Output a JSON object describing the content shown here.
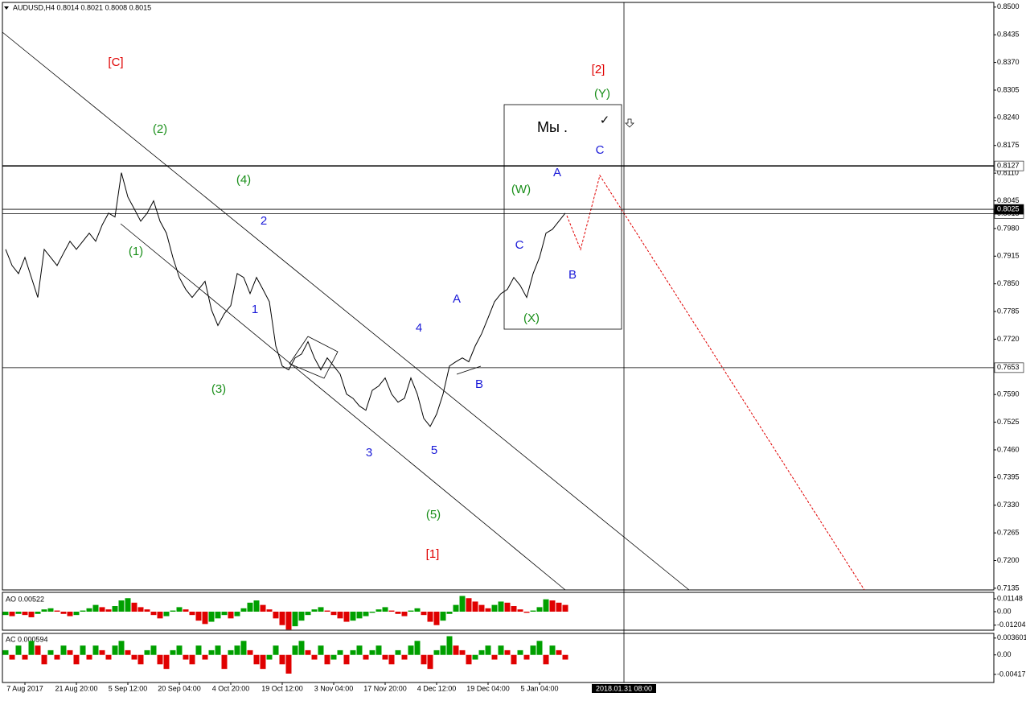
{
  "chart_data": [
    {
      "type": "line",
      "title": "AUDUSD,H4  0.8014 0.8021 0.8008 0.8015",
      "color": "#000000",
      "categories": [
        null,
        null,
        null,
        "7 Aug 2017",
        null,
        null,
        null,
        null,
        null,
        null,
        null,
        "21 Aug 20:00",
        null,
        null,
        null,
        null,
        null,
        null,
        null,
        "5 Sep 12:00",
        null,
        null,
        null,
        null,
        null,
        null,
        null,
        "20 Sep 04:00",
        null,
        null,
        null,
        null,
        null,
        null,
        null,
        "4 Oct 20:00",
        null,
        null,
        null,
        null,
        null,
        null,
        null,
        "19 Oct 12:00",
        null,
        null,
        null,
        null,
        null,
        null,
        null,
        "3 Nov 04:00",
        null,
        null,
        null,
        null,
        null,
        null,
        null,
        "17 Nov 20:00",
        null,
        null,
        null,
        null,
        null,
        null,
        null,
        "4 Dec 12:00",
        null,
        null,
        null,
        null,
        null,
        null,
        null,
        "19 Dec 04:00",
        null,
        null,
        null,
        null,
        null,
        null,
        null,
        "5 Jan 04:00",
        null,
        null,
        null,
        null
      ],
      "values": [
        0.7931,
        0.7893,
        0.7874,
        0.7912,
        0.7865,
        0.7818,
        0.7931,
        0.7912,
        0.7893,
        0.7922,
        0.795,
        0.7931,
        0.795,
        0.7969,
        0.795,
        0.7988,
        0.8016,
        0.8007,
        0.8111,
        0.8054,
        0.8026,
        0.7997,
        0.8016,
        0.8045,
        0.7997,
        0.7969,
        0.7912,
        0.7865,
        0.7837,
        0.7818,
        0.7837,
        0.7856,
        0.7789,
        0.7752,
        0.778,
        0.7799,
        0.7874,
        0.7865,
        0.7827,
        0.7865,
        0.7837,
        0.7808,
        0.7704,
        0.7657,
        0.7648,
        0.7676,
        0.7685,
        0.7714,
        0.7676,
        0.7648,
        0.7676,
        0.7657,
        0.7638,
        0.7591,
        0.7581,
        0.7563,
        0.7553,
        0.76,
        0.761,
        0.7629,
        0.7591,
        0.7572,
        0.7581,
        0.7629,
        0.7591,
        0.7534,
        0.7515,
        0.7544,
        0.7591,
        0.7657,
        0.7667,
        0.7676,
        0.7667,
        0.7704,
        0.7733,
        0.777,
        0.7808,
        0.7827,
        0.7837,
        0.7865,
        0.7846,
        0.7818,
        0.7874,
        0.7912,
        0.7969,
        0.7978,
        0.7997,
        0.8016
      ],
      "ylim": [
        0.7131,
        0.8511
      ],
      "yticks": [
        {
          "value": 0.85,
          "label": "0.8500"
        },
        {
          "value": 0.8435,
          "label": "0.8435"
        },
        {
          "value": 0.837,
          "label": "0.8370"
        },
        {
          "value": 0.8305,
          "label": "0.8305"
        },
        {
          "value": 0.824,
          "label": "0.8240"
        },
        {
          "value": 0.8175,
          "label": "0.8175"
        },
        {
          "value": 0.811,
          "label": "0.8110"
        },
        {
          "value": 0.8045,
          "label": "0.8045"
        },
        {
          "value": 0.798,
          "label": "0.7980"
        },
        {
          "value": 0.7915,
          "label": "0.7915"
        },
        {
          "value": 0.785,
          "label": "0.7850"
        },
        {
          "value": 0.7785,
          "label": "0.7785"
        },
        {
          "value": 0.772,
          "label": "0.7720"
        },
        {
          "value": 0.759,
          "label": "0.7590"
        },
        {
          "value": 0.7525,
          "label": "0.7525"
        },
        {
          "value": 0.746,
          "label": "0.7460"
        },
        {
          "value": 0.7395,
          "label": "0.7395"
        },
        {
          "value": 0.733,
          "label": "0.7330"
        },
        {
          "value": 0.7265,
          "label": "0.7265"
        },
        {
          "value": 0.72,
          "label": "0.7200"
        },
        {
          "value": 0.7135,
          "label": "0.7135"
        }
      ],
      "hlines": [
        {
          "value": 0.8127,
          "label": "0.8127"
        },
        {
          "value": 0.8015,
          "label": "0.8015"
        },
        {
          "value": 0.8025,
          "label": "0.8025"
        },
        {
          "value": 0.7653,
          "label": "0.7653"
        }
      ],
      "cursor_time": "2018.01.31 08:00",
      "annotations": [
        {
          "text": "[C]",
          "color": "#e00000"
        },
        {
          "text": "(2)",
          "color": "#1a8f1a"
        },
        {
          "text": "(4)",
          "color": "#1a8f1a"
        },
        {
          "text": "2",
          "color": "#1a1ad8"
        },
        {
          "text": "(1)",
          "color": "#1a8f1a"
        },
        {
          "text": "1",
          "color": "#1a1ad8"
        },
        {
          "text": "(3)",
          "color": "#1a8f1a"
        },
        {
          "text": "3",
          "color": "#1a1ad8"
        },
        {
          "text": "4",
          "color": "#1a1ad8"
        },
        {
          "text": "A",
          "color": "#1a1ad8"
        },
        {
          "text": "5",
          "color": "#1a1ad8"
        },
        {
          "text": "(5)",
          "color": "#1a8f1a"
        },
        {
          "text": "[1]",
          "color": "#e00000"
        },
        {
          "text": "B",
          "color": "#1a1ad8"
        },
        {
          "text": "C",
          "color": "#1a1ad8"
        },
        {
          "text": "(W)",
          "color": "#1a8f1a"
        },
        {
          "text": "A",
          "color": "#1a1ad8"
        },
        {
          "text": "(X)",
          "color": "#1a8f1a"
        },
        {
          "text": "B",
          "color": "#1a1ad8"
        },
        {
          "text": "C",
          "color": "#1a1ad8"
        },
        {
          "text": "(Y)",
          "color": "#1a8f1a"
        },
        {
          "text": "[2]",
          "color": "#e00000"
        },
        {
          "text": "Мы .",
          "color": "#000000"
        },
        {
          "text": "✓",
          "color": "#000000"
        }
      ]
    },
    {
      "type": "histogram-osc",
      "title": "AO 0.00522",
      "up_color": "#00a000",
      "down_color": "#e00000",
      "values": [
        -0.003,
        -0.004,
        -0.002,
        -0.003,
        -0.005,
        -0.002,
        0.002,
        0.003,
        0.001,
        -0.002,
        -0.004,
        -0.003,
        0.001,
        0.003,
        0.006,
        0.004,
        0.002,
        0.005,
        0.01,
        0.012,
        0.008,
        0.004,
        0.002,
        -0.003,
        -0.006,
        -0.004,
        0.001,
        0.004,
        0.002,
        -0.003,
        -0.008,
        -0.011,
        -0.009,
        -0.006,
        -0.003,
        -0.006,
        -0.004,
        0.003,
        0.008,
        0.01,
        0.006,
        0.002,
        -0.006,
        -0.012,
        -0.016,
        -0.013,
        -0.008,
        -0.003,
        0.002,
        0.004,
        0.001,
        -0.003,
        -0.006,
        -0.009,
        -0.008,
        -0.006,
        -0.004,
        -0.001,
        0.002,
        0.004,
        0.001,
        -0.002,
        -0.004,
        0.001,
        0.003,
        -0.003,
        -0.009,
        -0.012,
        -0.008,
        -0.002,
        0.006,
        0.014,
        0.012,
        0.009,
        0.006,
        0.003,
        0.006,
        0.009,
        0.008,
        0.005,
        0.002,
        -0.001,
        0.001,
        0.004,
        0.011,
        0.01,
        0.008,
        0.006
      ],
      "ylim": [
        -0.0165,
        0.0172
      ],
      "yticks": [
        0.01148,
        {
          "value": 0,
          "label": "0.00"
        },
        -0.01204
      ]
    },
    {
      "type": "histogram-osc",
      "title": "AC 0.000594",
      "up_color": "#00a000",
      "down_color": "#e00000",
      "values": [
        0.001,
        -0.001,
        0.002,
        -0.001,
        0.003,
        0.002,
        -0.002,
        0.001,
        -0.001,
        0.002,
        0.001,
        -0.002,
        0.002,
        -0.001,
        0.002,
        0.001,
        -0.001,
        0.002,
        0.003,
        0.001,
        -0.001,
        -0.002,
        0.001,
        0.002,
        -0.002,
        -0.003,
        0.001,
        0.002,
        -0.001,
        -0.002,
        0.002,
        -0.001,
        0.001,
        0.002,
        -0.003,
        0.001,
        0.002,
        0.003,
        0.001,
        -0.002,
        -0.003,
        -0.001,
        0.002,
        -0.002,
        -0.004,
        0.002,
        0.003,
        0.001,
        -0.001,
        0.002,
        -0.002,
        -0.001,
        0.001,
        -0.002,
        0.001,
        0.002,
        -0.001,
        0.001,
        0.002,
        -0.001,
        -0.002,
        0.001,
        -0.001,
        0.002,
        0.003,
        -0.002,
        -0.003,
        0.001,
        0.002,
        0.004,
        0.002,
        0.001,
        -0.002,
        -0.001,
        0.001,
        0.002,
        -0.001,
        0.002,
        0.001,
        -0.002,
        0.001,
        -0.001,
        0.002,
        0.003,
        -0.002,
        0.002,
        0.001,
        -0.001
      ],
      "ylim": [
        -0.0059,
        0.0046
      ],
      "yticks": [
        0.003601,
        {
          "value": 0,
          "label": "0.00"
        },
        -0.00417
      ]
    }
  ]
}
